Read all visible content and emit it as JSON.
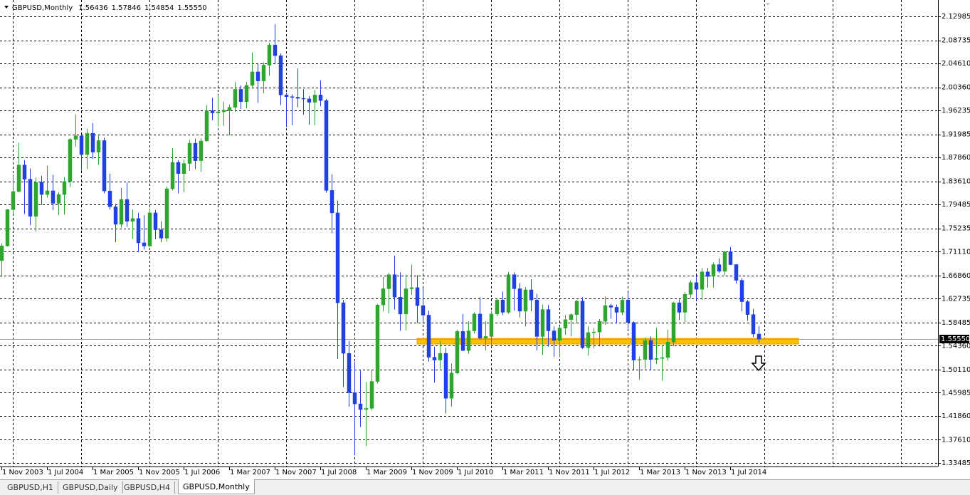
{
  "chart_data": {
    "type": "candlestick",
    "title": "GBPUSD,Monthly",
    "last_bar_labels": [
      "1.56436",
      "1.57846",
      "1.54854",
      "1.55550"
    ],
    "up_color": "#2fa52f",
    "down_color": "#2040e0",
    "grid": true,
    "ylim": [
      1.3285,
      2.1527
    ],
    "yticks": [
      2.12985,
      2.08735,
      {
        "value": 2.0461,
        "label": "2.04610"
      },
      {
        "value": 2.0036,
        "label": "2.00360"
      },
      1.96235,
      1.91985,
      {
        "value": 1.8786,
        "label": "1.87860"
      },
      {
        "value": 1.8361,
        "label": "1.83610"
      },
      1.79485,
      1.75235,
      {
        "value": 1.7111,
        "label": "1.71110"
      },
      {
        "value": 1.6686,
        "label": "1.66860"
      },
      1.62735,
      1.58485,
      {
        "value": 1.5436,
        "label": "1.54360"
      },
      {
        "value": 1.5011,
        "label": "1.50110"
      },
      1.45985,
      {
        "value": 1.4186,
        "label": "1.41860"
      },
      {
        "value": 1.3761,
        "label": "1.37610"
      },
      1.33485
    ],
    "xlim": [
      -0.25,
      164.5
    ],
    "xticks": [
      {
        "value": 0,
        "label": "1 Nov 2003"
      },
      {
        "value": 8,
        "label": "1 Jul 2004"
      },
      {
        "value": 16,
        "label": "1 Mar 2005"
      },
      {
        "value": 24,
        "label": "1 Nov 2005"
      },
      {
        "value": 32,
        "label": "1 Jul 2006"
      },
      {
        "value": 40,
        "label": "1 Mar 2007"
      },
      {
        "value": 48,
        "label": "1 Nov 2007"
      },
      {
        "value": 56,
        "label": "1 Jul 2008"
      },
      {
        "value": 64,
        "label": "1 Mar 2009"
      },
      {
        "value": 72,
        "label": "1 Nov 2009"
      },
      {
        "value": 80,
        "label": "1 Jul 2010"
      },
      {
        "value": 88,
        "label": "1 Mar 2011"
      },
      {
        "value": 96,
        "label": "1 Nov 2011"
      },
      {
        "value": 104,
        "label": "1 Jul 2012"
      },
      {
        "value": 112,
        "label": "1 Mar 2013"
      },
      {
        "value": 120,
        "label": "1 Nov 2013"
      },
      {
        "value": 128,
        "label": "1 Jul 2014"
      }
    ],
    "xgrid": [
      2,
      14,
      26,
      38,
      50,
      62,
      74,
      86,
      98,
      110,
      122,
      134,
      146,
      158
    ],
    "current_price": {
      "value": 1.5555,
      "label": "1.55550"
    },
    "support_zone": {
      "low": 1.5465,
      "high": 1.5565,
      "from": 73,
      "to": 140,
      "color": "#ffc000"
    },
    "open": [
      1.695,
      1.7212,
      1.7858,
      1.818,
      1.8653,
      1.84,
      1.774,
      1.8341,
      1.8128,
      1.8193,
      1.797,
      1.8127,
      1.836,
      1.911,
      1.9172,
      1.8838,
      1.9218,
      1.8882,
      1.9087,
      1.819,
      1.791,
      1.7597,
      1.804,
      1.765,
      1.77,
      1.7267,
      1.721,
      1.78,
      1.75,
      1.735,
      1.823,
      1.87,
      1.85,
      1.868,
      1.904,
      1.873,
      1.908,
      1.962,
      1.958,
      1.96,
      1.963,
      1.968,
      2.0,
      1.978,
      2.007,
      2.031,
      2.015,
      2.043,
      2.079,
      2.06,
      1.99,
      1.987,
      1.986,
      1.984,
      1.983,
      1.977,
      1.99,
      1.98,
      1.82,
      1.78,
      1.62,
      1.53,
      1.46,
      1.44,
      1.43,
      1.432,
      1.48,
      1.616,
      1.645,
      1.67,
      1.63,
      1.6,
      1.645,
      1.647,
      1.615,
      1.598,
      1.523,
      1.518,
      1.53,
      1.45,
      1.495,
      1.569,
      1.535,
      1.57,
      1.6,
      1.557,
      1.56,
      1.6,
      1.625,
      1.603,
      1.67,
      1.645,
      1.605,
      1.643,
      1.625,
      1.56,
      1.608,
      1.57,
      1.553,
      1.575,
      1.59,
      1.599,
      1.623,
      1.54,
      1.567,
      1.568,
      1.587,
      1.615,
      1.612,
      1.603,
      1.625,
      1.585,
      1.518,
      1.519,
      1.553,
      1.519,
      1.521,
      1.5225,
      1.55,
      1.62,
      1.603,
      1.635,
      1.656,
      1.644,
      1.675,
      1.667,
      1.688,
      1.676,
      1.711,
      1.688,
      1.66,
      1.622,
      1.599,
      1.56436
    ],
    "high": [
      1.726,
      1.787,
      1.848,
      1.905,
      1.874,
      1.859,
      1.843,
      1.846,
      1.864,
      1.848,
      1.817,
      1.844,
      1.913,
      1.955,
      1.92,
      1.93,
      1.94,
      1.92,
      1.914,
      1.85,
      1.796,
      1.825,
      1.834,
      1.786,
      1.78,
      1.776,
      1.788,
      1.785,
      1.765,
      1.827,
      1.895,
      1.874,
      1.875,
      1.91,
      1.912,
      1.913,
      1.972,
      1.985,
      1.99,
      1.978,
      1.973,
      2.013,
      2.007,
      2.013,
      2.066,
      2.046,
      2.048,
      2.083,
      2.116,
      2.064,
      1.994,
      1.991,
      2.037,
      2.0,
      1.988,
      1.999,
      2.016,
      1.983,
      1.849,
      1.802,
      1.625,
      1.552,
      1.515,
      1.499,
      1.479,
      1.5,
      1.618,
      1.666,
      1.673,
      1.704,
      1.674,
      1.67,
      1.688,
      1.669,
      1.646,
      1.606,
      1.542,
      1.552,
      1.54,
      1.512,
      1.572,
      1.6,
      1.587,
      1.603,
      1.63,
      1.587,
      1.606,
      1.628,
      1.64,
      1.675,
      1.674,
      1.655,
      1.648,
      1.662,
      1.636,
      1.617,
      1.616,
      1.578,
      1.578,
      1.598,
      1.601,
      1.625,
      1.63,
      1.578,
      1.575,
      1.591,
      1.631,
      1.618,
      1.617,
      1.631,
      1.638,
      1.587,
      1.524,
      1.558,
      1.56,
      1.576,
      1.544,
      1.572,
      1.622,
      1.626,
      1.639,
      1.66,
      1.667,
      1.682,
      1.682,
      1.692,
      1.699,
      1.712,
      1.719,
      1.689,
      1.664,
      1.625,
      1.609,
      1.57846
    ],
    "low": [
      1.666,
      1.72,
      1.778,
      1.817,
      1.778,
      1.758,
      1.747,
      1.794,
      1.807,
      1.785,
      1.776,
      1.777,
      1.826,
      1.898,
      1.855,
      1.858,
      1.876,
      1.866,
      1.815,
      1.786,
      1.728,
      1.754,
      1.755,
      1.734,
      1.71,
      1.715,
      1.72,
      1.733,
      1.728,
      1.729,
      1.82,
      1.815,
      1.817,
      1.855,
      1.858,
      1.853,
      1.907,
      1.945,
      1.934,
      1.935,
      1.918,
      1.96,
      1.965,
      1.966,
      2.001,
      1.976,
      1.993,
      2.024,
      2.045,
      1.972,
      1.933,
      1.936,
      1.968,
      1.955,
      1.937,
      1.936,
      1.97,
      1.816,
      1.744,
      1.52,
      1.47,
      1.435,
      1.35,
      1.399,
      1.365,
      1.428,
      1.476,
      1.605,
      1.601,
      1.608,
      1.57,
      1.571,
      1.634,
      1.584,
      1.583,
      1.515,
      1.478,
      1.502,
      1.423,
      1.435,
      1.493,
      1.534,
      1.529,
      1.565,
      1.555,
      1.535,
      1.542,
      1.596,
      1.598,
      1.6,
      1.606,
      1.594,
      1.578,
      1.605,
      1.535,
      1.527,
      1.542,
      1.524,
      1.523,
      1.563,
      1.56,
      1.585,
      1.538,
      1.526,
      1.539,
      1.544,
      1.581,
      1.592,
      1.583,
      1.598,
      1.574,
      1.501,
      1.483,
      1.502,
      1.5,
      1.511,
      1.481,
      1.517,
      1.543,
      1.589,
      1.586,
      1.628,
      1.625,
      1.625,
      1.647,
      1.647,
      1.673,
      1.669,
      1.687,
      1.654,
      1.605,
      1.588,
      1.559,
      1.54854
    ],
    "close": [
      1.7212,
      1.7858,
      1.818,
      1.8653,
      1.84,
      1.774,
      1.8341,
      1.8128,
      1.8193,
      1.797,
      1.8127,
      1.836,
      1.911,
      1.9172,
      1.8838,
      1.9218,
      1.8882,
      1.9087,
      1.819,
      1.791,
      1.7597,
      1.804,
      1.765,
      1.77,
      1.7267,
      1.721,
      1.78,
      1.75,
      1.735,
      1.823,
      1.87,
      1.85,
      1.868,
      1.904,
      1.873,
      1.908,
      1.962,
      1.958,
      1.96,
      1.963,
      1.968,
      2.0,
      1.978,
      2.007,
      2.031,
      2.015,
      2.043,
      2.079,
      2.06,
      1.99,
      1.987,
      1.986,
      1.984,
      1.983,
      1.977,
      1.99,
      1.98,
      1.82,
      1.78,
      1.62,
      1.53,
      1.46,
      1.44,
      1.43,
      1.432,
      1.48,
      1.616,
      1.645,
      1.67,
      1.63,
      1.6,
      1.645,
      1.647,
      1.615,
      1.598,
      1.523,
      1.518,
      1.53,
      1.45,
      1.495,
      1.569,
      1.535,
      1.57,
      1.6,
      1.557,
      1.56,
      1.6,
      1.625,
      1.603,
      1.67,
      1.645,
      1.605,
      1.643,
      1.625,
      1.56,
      1.608,
      1.57,
      1.553,
      1.575,
      1.59,
      1.599,
      1.623,
      1.54,
      1.567,
      1.568,
      1.587,
      1.615,
      1.612,
      1.603,
      1.625,
      1.585,
      1.518,
      1.519,
      1.553,
      1.519,
      1.521,
      1.5225,
      1.55,
      1.62,
      1.603,
      1.635,
      1.656,
      1.644,
      1.675,
      1.667,
      1.688,
      1.676,
      1.711,
      1.688,
      1.66,
      1.622,
      1.599,
      1.5644,
      1.5555
    ]
  },
  "tabs": [
    "GBPUSD,H1",
    "GBPUSD,Daily",
    "GBPUSD,H4",
    "GBPUSD,Monthly"
  ]
}
